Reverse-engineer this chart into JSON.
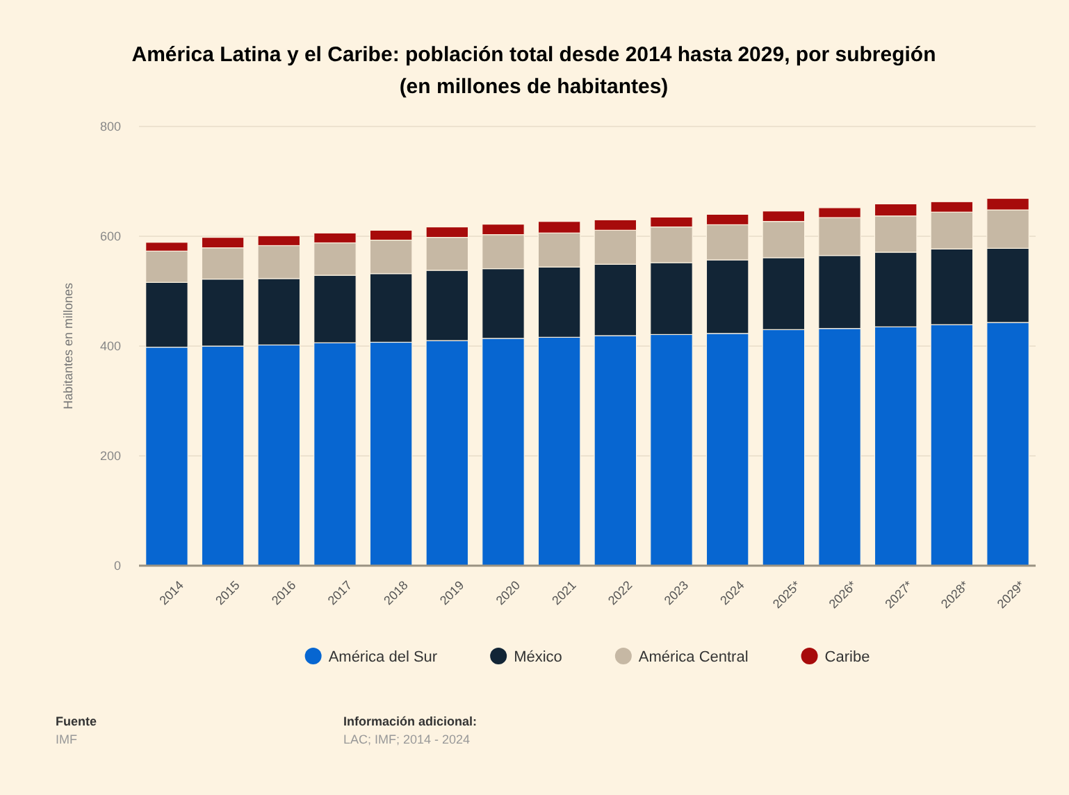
{
  "chart_data": {
    "type": "bar",
    "stacked": true,
    "title": "América Latina y el Caribe: población total desde 2014 hasta 2029, por subregión",
    "subtitle": "(en millones de habitantes)",
    "ylabel": "Habitantes en millones",
    "categories": [
      "2014",
      "2015",
      "2016",
      "2017",
      "2018",
      "2019",
      "2020",
      "2021",
      "2022",
      "2023",
      "2024",
      "2025*",
      "2026*",
      "2027*",
      "2028*",
      "2029*"
    ],
    "series": [
      {
        "name": "América del Sur",
        "color": "#0766d1",
        "values": [
          398,
          400,
          402,
          406,
          407,
          410,
          414,
          416,
          419,
          421,
          423,
          430,
          432,
          435,
          439,
          443
        ]
      },
      {
        "name": "México",
        "color": "#122536",
        "values": [
          118,
          122,
          121,
          123,
          125,
          128,
          127,
          128,
          130,
          131,
          134,
          131,
          133,
          136,
          138,
          135
        ]
      },
      {
        "name": "América Central",
        "color": "#c6b8a4",
        "values": [
          57,
          57,
          60,
          59,
          61,
          60,
          62,
          62,
          62,
          65,
          64,
          66,
          69,
          66,
          67,
          70
        ]
      },
      {
        "name": "Caribe",
        "color": "#a70b0b",
        "values": [
          16,
          19,
          18,
          18,
          18,
          19,
          19,
          21,
          19,
          18,
          19,
          19,
          18,
          22,
          19,
          21
        ]
      }
    ],
    "ylim": [
      0,
      800
    ],
    "yticks": [
      0,
      200,
      400,
      600,
      800
    ],
    "grid": "y",
    "legend": "bottom",
    "annotations": [
      "Fuente",
      "IMF",
      "Información adicional:",
      "LAC; IMF; 2014 - 2024"
    ]
  }
}
